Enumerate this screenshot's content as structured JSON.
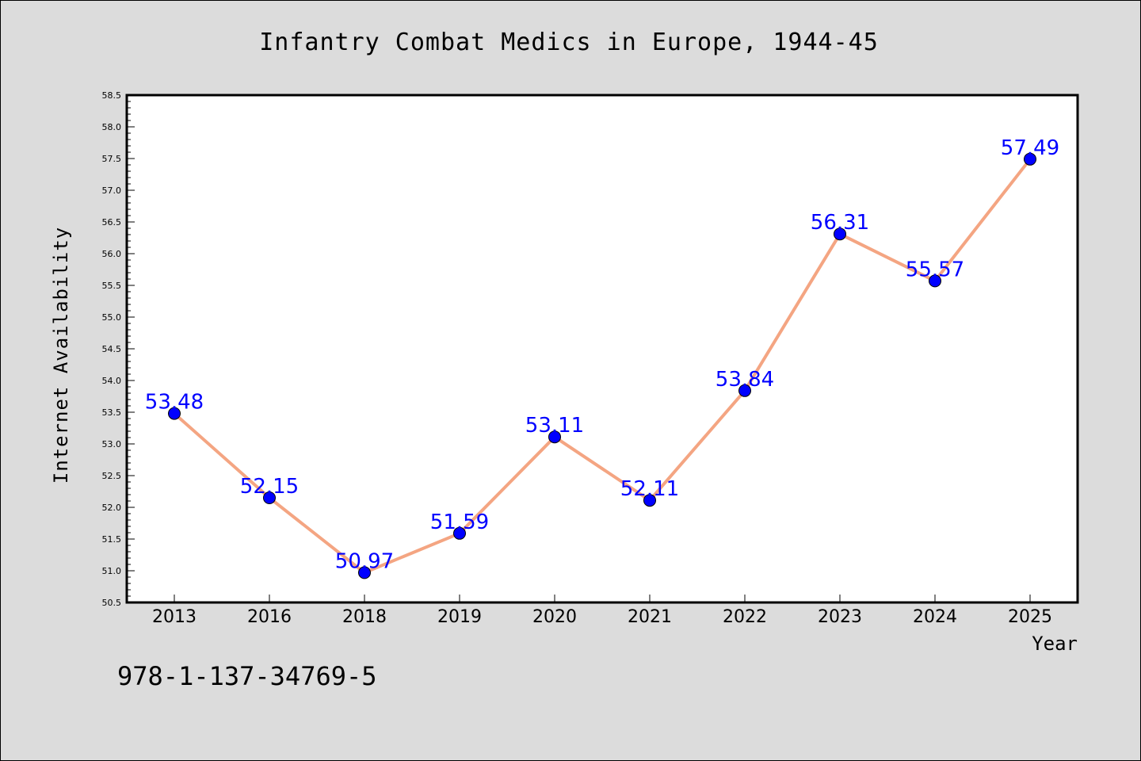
{
  "chart_data": {
    "type": "line",
    "title": "Infantry Combat Medics in Europe, 1944-45",
    "xlabel": "Year",
    "ylabel": "Internet Availability",
    "categories": [
      "2013",
      "2016",
      "2018",
      "2019",
      "2020",
      "2021",
      "2022",
      "2023",
      "2024",
      "2025"
    ],
    "values": [
      53.48,
      52.15,
      50.97,
      51.59,
      53.11,
      52.11,
      53.84,
      56.31,
      55.57,
      57.49
    ],
    "data_labels": [
      "53.48",
      "52.15",
      "50.97",
      "51.59",
      "53.11",
      "52.11",
      "53.84",
      "56.31",
      "55.57",
      "57.49"
    ],
    "ylim": [
      50.5,
      58.5
    ],
    "y_ticks": [
      "50.5",
      "51.0",
      "51.5",
      "52.0",
      "52.5",
      "53.0",
      "53.5",
      "54.0",
      "54.5",
      "55.0",
      "55.5",
      "56.0",
      "56.5",
      "57.0",
      "57.5",
      "58.0",
      "58.5"
    ],
    "grid": false,
    "legend": "none",
    "colors": {
      "line": "#f4a582",
      "marker": "#0000ff",
      "data_label": "#0000ff",
      "background": "#dcdcdc",
      "plot_area": "#ffffff"
    }
  },
  "footer": {
    "isbn": "978-1-137-34769-5"
  }
}
